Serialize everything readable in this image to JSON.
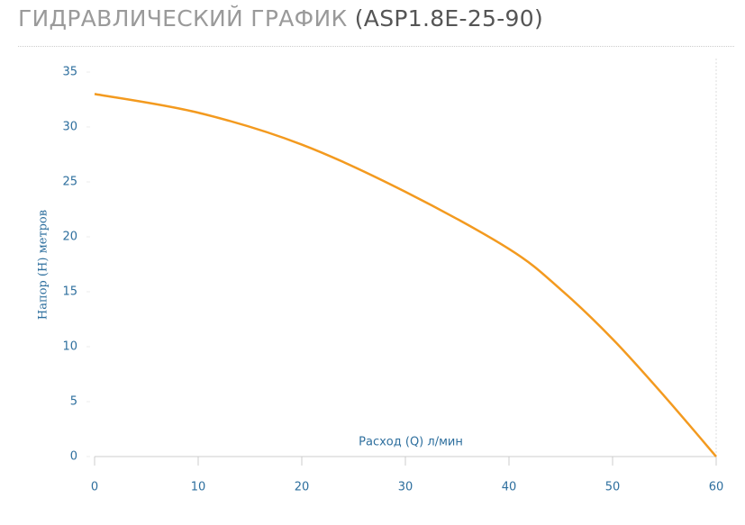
{
  "header": {
    "title": "ГИДРАВЛИЧЕСКИЙ ГРАФИК",
    "model": "(ASP1.8E-25-90)"
  },
  "chart_data": {
    "type": "line",
    "x_label": "Расход (Q) л/мин",
    "y_label": "Напор (H) метров",
    "series": [
      {
        "name": "ASP1.8E-25-90",
        "color": "#f39a1f",
        "x": [
          0,
          10,
          20,
          30,
          40,
          45,
          50,
          55,
          60
        ],
        "values": [
          33,
          31.3,
          28.4,
          24.1,
          18.9,
          15.2,
          10.7,
          5.5,
          0
        ]
      }
    ],
    "xlim": [
      0,
      60
    ],
    "xticks": [
      0,
      10,
      20,
      30,
      40,
      50,
      60
    ],
    "ylim": [
      0,
      35
    ],
    "yticks": [
      0,
      5,
      10,
      15,
      20,
      25,
      30,
      35
    ]
  }
}
